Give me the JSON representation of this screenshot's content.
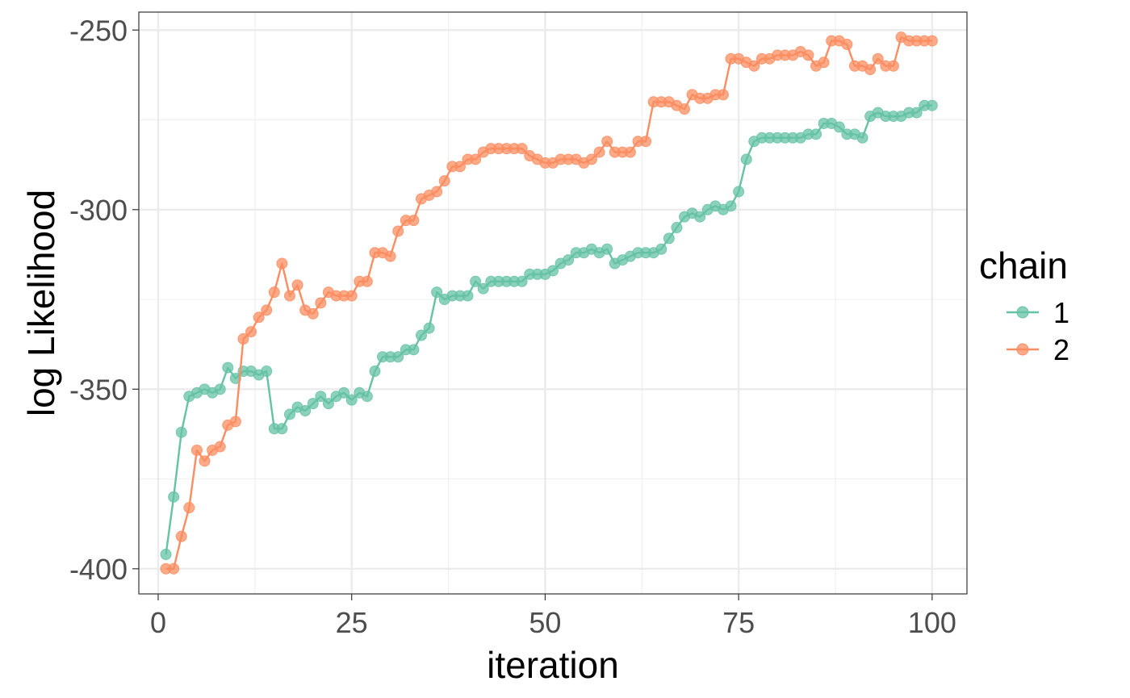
{
  "chart_data": {
    "type": "line",
    "title": "",
    "xlabel": "iteration",
    "ylabel": "log Likelihood",
    "xlim": [
      -2.5,
      104.5
    ],
    "ylim": [
      -407,
      -245
    ],
    "x_ticks": [
      0,
      25,
      50,
      75,
      100
    ],
    "x_tick_labels": [
      "0",
      "25",
      "50",
      "75",
      "100"
    ],
    "y_ticks": [
      -400,
      -350,
      -300,
      -250
    ],
    "y_tick_labels": [
      "-400",
      "-350",
      "-300",
      "-250"
    ],
    "grid": true,
    "markers": "circle",
    "legend": {
      "title": "chain",
      "position": "right"
    },
    "series": [
      {
        "name": "1",
        "color": "#66c2a5",
        "values": [
          -396,
          -380,
          -362,
          -352,
          -351,
          -350,
          -351,
          -350,
          -344,
          -347,
          -345,
          -345,
          -346,
          -345,
          -361,
          -361,
          -357,
          -355,
          -356,
          -354,
          -352,
          -354,
          -352,
          -351,
          -353,
          -351,
          -352,
          -345,
          -341,
          -341,
          -341,
          -339,
          -339,
          -335,
          -333,
          -323,
          -325,
          -324,
          -324,
          -324,
          -320,
          -322,
          -320,
          -320,
          -320,
          -320,
          -320,
          -318,
          -318,
          -318,
          -317,
          -315,
          -314,
          -312,
          -312,
          -311,
          -312,
          -311,
          -315,
          -314,
          -313,
          -312,
          -312,
          -312,
          -311,
          -308,
          -305,
          -302,
          -301,
          -302,
          -300,
          -299,
          -300,
          -299,
          -295,
          -286,
          -281,
          -280,
          -280,
          -280,
          -280,
          -280,
          -280,
          -279,
          -279,
          -276,
          -276,
          -277,
          -279,
          -279,
          -280,
          -274,
          -273,
          -274,
          -274,
          -274,
          -273,
          -273,
          -271,
          -271
        ]
      },
      {
        "name": "2",
        "color": "#fc8d62",
        "values": [
          -400,
          -400,
          -391,
          -383,
          -367,
          -370,
          -367,
          -366,
          -360,
          -359,
          -336,
          -334,
          -330,
          -328,
          -323,
          -315,
          -324,
          -321,
          -328,
          -329,
          -326,
          -323,
          -324,
          -324,
          -324,
          -320,
          -320,
          -312,
          -312,
          -313,
          -306,
          -303,
          -303,
          -297,
          -296,
          -295,
          -292,
          -288,
          -288,
          -286,
          -286,
          -284,
          -283,
          -283,
          -283,
          -283,
          -283,
          -285,
          -286,
          -287,
          -287,
          -286,
          -286,
          -286,
          -287,
          -286,
          -284,
          -281,
          -284,
          -284,
          -284,
          -281,
          -281,
          -270,
          -270,
          -270,
          -271,
          -272,
          -268,
          -269,
          -269,
          -268,
          -268,
          -258,
          -258,
          -259,
          -260,
          -258,
          -258,
          -257,
          -257,
          -257,
          -256,
          -257,
          -260,
          -259,
          -253,
          -253,
          -254,
          -260,
          -260,
          -261,
          -258,
          -260,
          -260,
          -252,
          -253,
          -253,
          -253,
          -253
        ]
      }
    ]
  }
}
